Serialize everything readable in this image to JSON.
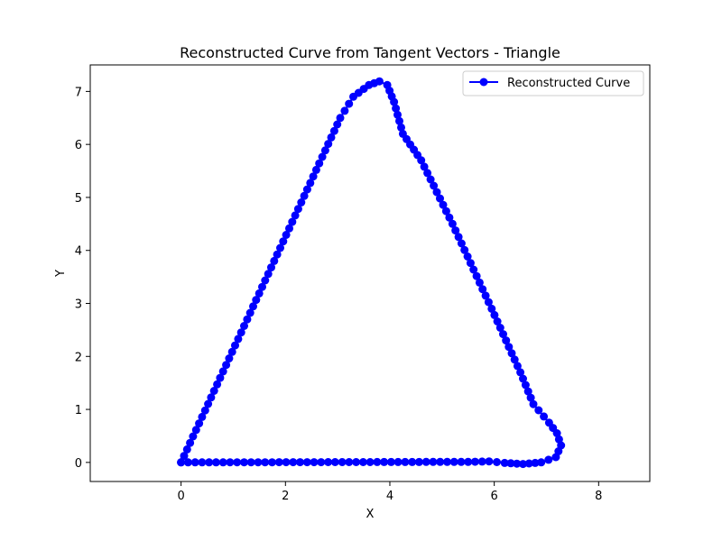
{
  "chart_data": {
    "type": "line",
    "title": "Reconstructed Curve from Tangent Vectors - Triangle",
    "xlabel": "X",
    "ylabel": "Y",
    "xlim": [
      -1.74,
      8.98
    ],
    "ylim": [
      -0.36,
      7.5
    ],
    "xticks": [
      0,
      2,
      4,
      6,
      8
    ],
    "yticks": [
      0,
      1,
      2,
      3,
      4,
      5,
      6,
      7
    ],
    "grid": false,
    "legend_position": "top-right",
    "series": [
      {
        "name": "Reconstructed Curve",
        "color": "#0000ff",
        "marker": "circle",
        "anchors": [
          [
            0.0,
            0.0
          ],
          [
            3.05,
            6.5
          ],
          [
            3.3,
            6.9
          ],
          [
            3.6,
            7.12
          ],
          [
            3.8,
            7.19
          ],
          [
            3.95,
            7.12
          ],
          [
            4.08,
            6.8
          ],
          [
            4.25,
            6.2
          ],
          [
            4.6,
            5.7
          ],
          [
            5.2,
            4.5
          ],
          [
            5.95,
            2.9
          ],
          [
            6.5,
            1.7
          ],
          [
            6.75,
            1.1
          ],
          [
            7.05,
            0.75
          ],
          [
            7.2,
            0.55
          ],
          [
            7.28,
            0.32
          ],
          [
            7.18,
            0.1
          ],
          [
            6.9,
            0.0
          ],
          [
            6.55,
            -0.03
          ],
          [
            6.2,
            -0.01
          ],
          [
            5.9,
            0.02
          ],
          [
            5.5,
            0.01
          ],
          [
            0.0,
            0.0
          ]
        ]
      }
    ]
  }
}
